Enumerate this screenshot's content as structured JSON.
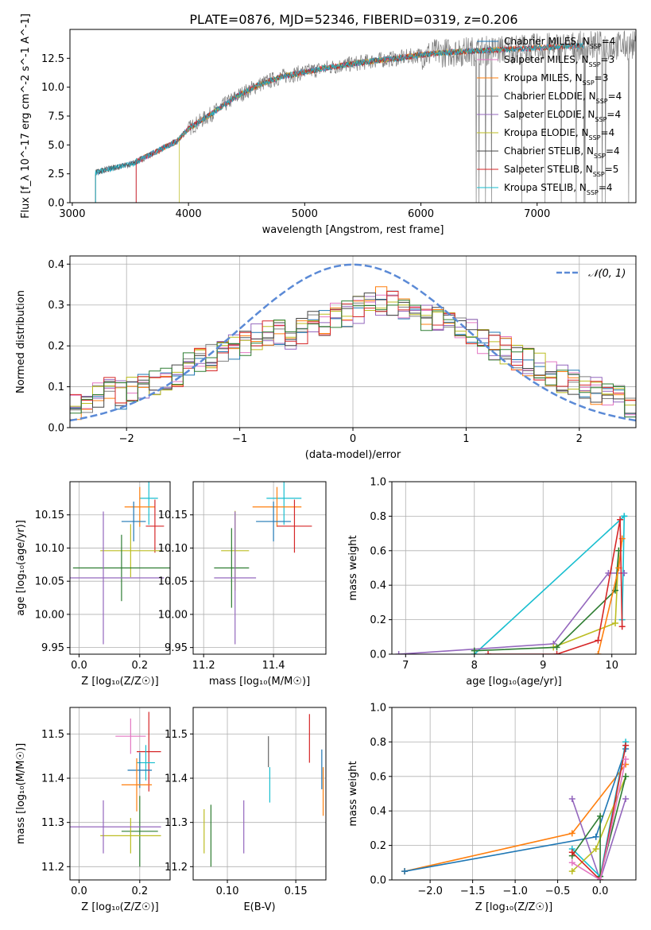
{
  "figure_title": "PLATE=0876, MJD=52346, FIBERID=0319, z=0.206",
  "colors": {
    "chabrier_miles": "#1f77b4",
    "salpeter_miles": "#e377c2",
    "kroupa_miles": "#ff7f0e",
    "chabrier_elodie": "#7f7f7f",
    "salpeter_elodie": "#9467bd",
    "kroupa_elodie": "#bcbd22",
    "chabrier_stelib": "#444444",
    "salpeter_stelib": "#d62728",
    "kroupa_stelib": "#17becf",
    "normal": "#5b8ad6"
  },
  "chart_data": [
    {
      "id": "spectrum",
      "type": "line",
      "title": "PLATE=0876, MJD=52346, FIBERID=0319, z=0.206",
      "xlabel": "wavelength [Angstrom, rest frame]",
      "ylabel": "Flux [f_λ 10^-17 erg cm^-2 s^-1 A^-1]",
      "xlim": [
        2980,
        7850
      ],
      "ylim": [
        0,
        15
      ],
      "xticks": [
        "3000",
        "4000",
        "5000",
        "6000",
        "7000"
      ],
      "yticks": [
        "0.0",
        "2.5",
        "5.0",
        "7.5",
        "10.0",
        "12.5"
      ],
      "grid": false,
      "legend_position": "top-right",
      "legend": [
        {
          "label": "Chabrier MILES, N",
          "sub": "SSP",
          "tail": "=4"
        },
        {
          "label": "Salpeter MILES, N",
          "sub": "SSP",
          "tail": "=3"
        },
        {
          "label": "Kroupa MILES, N",
          "sub": "SSP",
          "tail": "=3"
        },
        {
          "label": "Chabrier ELODIE, N",
          "sub": "SSP",
          "tail": "=4"
        },
        {
          "label": "Salpeter ELODIE, N",
          "sub": "SSP",
          "tail": "=4"
        },
        {
          "label": "Kroupa ELODIE, N",
          "sub": "SSP",
          "tail": "=4"
        },
        {
          "label": "Chabrier STELIB, N",
          "sub": "SSP",
          "tail": "=4"
        },
        {
          "label": "Salpeter STELIB, N",
          "sub": "SSP",
          "tail": "=5"
        },
        {
          "label": "Kroupa STELIB, N",
          "sub": "SSP",
          "tail": "=4"
        }
      ],
      "observed_continuum": {
        "x": [
          3200,
          3300,
          3500,
          3700,
          3900,
          4000,
          4200,
          4400,
          4600,
          4800,
          5000,
          5200,
          5400,
          5600,
          5800,
          6000,
          6200,
          6400,
          6600,
          6800,
          7000,
          7200,
          7400
        ],
        "y": [
          2.6,
          2.9,
          3.3,
          4.3,
          5.3,
          6.4,
          7.7,
          9.1,
          10.2,
          10.9,
          11.3,
          11.7,
          12.0,
          12.3,
          12.5,
          12.8,
          13.0,
          13.1,
          13.2,
          13.3,
          13.4,
          13.5,
          13.6
        ]
      },
      "model_start_wavelengths": [
        3200,
        3550,
        3550,
        3200,
        3550,
        3920,
        3200,
        3550,
        3200
      ]
    },
    {
      "id": "residual_hist",
      "type": "line",
      "xlabel": "(data-model)/error",
      "ylabel": "Normed distribution",
      "xlim": [
        -2.5,
        2.5
      ],
      "ylim": [
        0,
        0.42
      ],
      "xticks": [
        "−2",
        "−1",
        "0",
        "1",
        "2"
      ],
      "yticks": [
        "0.0",
        "0.1",
        "0.2",
        "0.3",
        "0.4"
      ],
      "grid": true,
      "legend_position": "top-right",
      "legend_label": "𝒩(0, 1)",
      "bin_edges_start": -2.5,
      "bin_width": 0.1,
      "baseline": [
        0.05,
        0.06,
        0.08,
        0.09,
        0.08,
        0.09,
        0.1,
        0.11,
        0.12,
        0.13,
        0.15,
        0.16,
        0.17,
        0.19,
        0.2,
        0.21,
        0.22,
        0.23,
        0.23,
        0.22,
        0.24,
        0.25,
        0.26,
        0.27,
        0.28,
        0.29,
        0.3,
        0.31,
        0.3,
        0.29,
        0.28,
        0.27,
        0.26,
        0.25,
        0.24,
        0.23,
        0.21,
        0.2,
        0.19,
        0.17,
        0.16,
        0.15,
        0.13,
        0.12,
        0.11,
        0.1,
        0.09,
        0.08,
        0.07,
        0.06
      ],
      "normal_curve": {
        "mean": 0,
        "sigma": 1
      }
    },
    {
      "id": "age_vs_Z",
      "type": "scatter",
      "xlabel": "Z [log₁₀(Z/Z☉)]",
      "ylabel": "age  [log₁₀(age/yr)]",
      "xlim": [
        -0.03,
        0.3
      ],
      "ylim": [
        9.94,
        10.2
      ],
      "xticks": [
        "0.0",
        "0.2"
      ],
      "yticks": [
        "9.95",
        "10.00",
        "10.05",
        "10.10",
        "10.15"
      ],
      "grid": true,
      "points": [
        {
          "x": 0.23,
          "y": 10.175,
          "xerr": 0.03,
          "yerr": 0.04,
          "c": "#17becf"
        },
        {
          "x": 0.2,
          "y": 10.162,
          "xerr": 0.05,
          "yerr": 0.03,
          "c": "#ff7f0e"
        },
        {
          "x": 0.18,
          "y": 10.14,
          "xerr": 0.04,
          "yerr": 0.03,
          "c": "#1f77b4"
        },
        {
          "x": 0.25,
          "y": 10.133,
          "xerr": 0.03,
          "yerr": 0.04,
          "c": "#d62728"
        },
        {
          "x": 0.17,
          "y": 10.096,
          "xerr": 0.1,
          "yerr": 0.04,
          "c": "#bcbd22"
        },
        {
          "x": 0.14,
          "y": 10.07,
          "xerr": 0.16,
          "yerr": 0.05,
          "c": "#2e7d32"
        },
        {
          "x": 0.08,
          "y": 10.055,
          "xerr": 0.2,
          "yerr": 0.1,
          "c": "#9467bd"
        }
      ]
    },
    {
      "id": "age_vs_mass",
      "type": "scatter",
      "xlabel": "mass [log₁₀(M/M☉)]",
      "ylabel": "",
      "xlim": [
        11.17,
        11.55
      ],
      "ylim": [
        9.94,
        10.2
      ],
      "xticks": [
        "11.2",
        "11.4"
      ],
      "yticks": [
        "9.95",
        "10.00",
        "10.05",
        "10.10",
        "10.15"
      ],
      "grid": true,
      "points": [
        {
          "x": 11.43,
          "y": 10.175,
          "xerr": 0.05,
          "yerr": 0.04,
          "c": "#17becf"
        },
        {
          "x": 11.41,
          "y": 10.162,
          "xerr": 0.07,
          "yerr": 0.03,
          "c": "#ff7f0e"
        },
        {
          "x": 11.4,
          "y": 10.14,
          "xerr": 0.05,
          "yerr": 0.03,
          "c": "#1f77b4"
        },
        {
          "x": 11.46,
          "y": 10.133,
          "xerr": 0.05,
          "yerr": 0.04,
          "c": "#d62728"
        },
        {
          "x": 11.29,
          "y": 10.096,
          "xerr": 0.04,
          "yerr": 0.06,
          "c": "#bcbd22"
        },
        {
          "x": 11.28,
          "y": 10.07,
          "xerr": 0.05,
          "yerr": 0.06,
          "c": "#2e7d32"
        },
        {
          "x": 11.29,
          "y": 10.055,
          "xerr": 0.06,
          "yerr": 0.1,
          "c": "#9467bd"
        }
      ]
    },
    {
      "id": "mass_weight_vs_age",
      "type": "line",
      "xlabel": "age  [log₁₀(age/yr)]",
      "ylabel": "mass weight",
      "xlim": [
        6.8,
        10.35
      ],
      "ylim": [
        0,
        1.0
      ],
      "xticks": [
        "7",
        "8",
        "9",
        "10"
      ],
      "yticks": [
        "0.0",
        "0.2",
        "0.4",
        "0.6",
        "0.8",
        "1.0"
      ],
      "grid": true,
      "series": [
        {
          "c": "#17becf",
          "x": [
            8.0,
            10.18
          ],
          "y": [
            0.0,
            0.8
          ]
        },
        {
          "c": "#17becf",
          "x": [
            10.15,
            10.18
          ],
          "y": [
            0.2,
            0.8
          ]
        },
        {
          "c": "#9467bd",
          "x": [
            6.9,
            9.15,
            9.95,
            10.18
          ],
          "y": [
            0.0,
            0.06,
            0.47,
            0.47
          ]
        },
        {
          "c": "#bcbd22",
          "x": [
            9.15,
            10.05,
            10.1
          ],
          "y": [
            0.04,
            0.18,
            0.6
          ]
        },
        {
          "c": "#2e7d32",
          "x": [
            8.0,
            9.2,
            10.05,
            10.1
          ],
          "y": [
            0.02,
            0.04,
            0.37,
            0.6
          ]
        },
        {
          "c": "#ff7f0e",
          "x": [
            9.8,
            10.1,
            10.15
          ],
          "y": [
            0.0,
            0.5,
            0.67
          ]
        },
        {
          "c": "#d62728",
          "x": [
            8.2,
            9.2,
            9.8,
            10.12,
            10.15
          ],
          "y": [
            0.0,
            0.0,
            0.08,
            0.78,
            0.16
          ]
        }
      ]
    },
    {
      "id": "mass_vs_Z",
      "type": "scatter",
      "xlabel": "Z [log₁₀(Z/Z☉)]",
      "ylabel": "mass [log₁₀(M/M☉)]",
      "xlim": [
        -0.03,
        0.3
      ],
      "ylim": [
        11.17,
        11.56
      ],
      "xticks": [
        "0.0",
        "0.2"
      ],
      "yticks": [
        "11.2",
        "11.3",
        "11.4",
        "11.5"
      ],
      "grid": true,
      "points": [
        {
          "x": 0.23,
          "y": 11.46,
          "xerr": 0.04,
          "yerr": 0.09,
          "c": "#d62728"
        },
        {
          "x": 0.17,
          "y": 11.495,
          "xerr": 0.05,
          "yerr": 0.04,
          "c": "#e377c2"
        },
        {
          "x": 0.22,
          "y": 11.435,
          "xerr": 0.03,
          "yerr": 0.04,
          "c": "#17becf"
        },
        {
          "x": 0.2,
          "y": 11.418,
          "xerr": 0.04,
          "yerr": 0.04,
          "c": "#1f77b4"
        },
        {
          "x": 0.19,
          "y": 11.385,
          "xerr": 0.05,
          "yerr": 0.06,
          "c": "#ff7f0e"
        },
        {
          "x": 0.2,
          "y": 11.28,
          "xerr": 0.06,
          "yerr": 0.08,
          "c": "#2e7d32"
        },
        {
          "x": 0.17,
          "y": 11.27,
          "xerr": 0.1,
          "yerr": 0.04,
          "c": "#bcbd22"
        },
        {
          "x": 0.08,
          "y": 11.29,
          "xerr": 0.19,
          "yerr": 0.06,
          "c": "#9467bd"
        }
      ]
    },
    {
      "id": "mass_vs_ebv",
      "type": "scatter",
      "xlabel": "E(B-V)",
      "ylabel": "",
      "xlim": [
        0.075,
        0.172
      ],
      "ylim": [
        11.17,
        11.56
      ],
      "xticks": [
        "0.10",
        "0.15"
      ],
      "yticks": [
        "11.2",
        "11.3",
        "11.4",
        "11.5"
      ],
      "grid": true,
      "points": [
        {
          "x": 0.16,
          "y": 11.49,
          "yerr": 0.055,
          "c": "#d62728"
        },
        {
          "x": 0.169,
          "y": 11.42,
          "yerr": 0.045,
          "c": "#1f77b4"
        },
        {
          "x": 0.17,
          "y": 11.37,
          "yerr": 0.055,
          "c": "#ff7f0e"
        },
        {
          "x": 0.13,
          "y": 11.46,
          "yerr": 0.035,
          "c": "#666666"
        },
        {
          "x": 0.131,
          "y": 11.385,
          "yerr": 0.04,
          "c": "#17becf"
        },
        {
          "x": 0.112,
          "y": 11.29,
          "yerr": 0.06,
          "c": "#9467bd"
        },
        {
          "x": 0.088,
          "y": 11.27,
          "yerr": 0.07,
          "c": "#2e7d32"
        },
        {
          "x": 0.083,
          "y": 11.28,
          "yerr": 0.05,
          "c": "#bcbd22"
        }
      ]
    },
    {
      "id": "mass_weight_vs_Z",
      "type": "line",
      "xlabel": "Z [log₁₀(Z/Z☉)]",
      "ylabel": "mass weight",
      "xlim": [
        -2.45,
        0.42
      ],
      "ylim": [
        0,
        1.0
      ],
      "xticks": [
        "−2.0",
        "−1.5",
        "−1.0",
        "−0.5",
        "0.0"
      ],
      "yticks": [
        "0.0",
        "0.2",
        "0.4",
        "0.6",
        "0.8",
        "1.0"
      ],
      "grid": true,
      "series": [
        {
          "c": "#ff7f0e",
          "x": [
            -2.3,
            -0.33,
            0.3
          ],
          "y": [
            0.05,
            0.27,
            0.67
          ]
        },
        {
          "c": "#1f77b4",
          "x": [
            -2.3,
            -0.05,
            0.3
          ],
          "y": [
            0.05,
            0.25,
            0.76
          ]
        },
        {
          "c": "#9467bd",
          "x": [
            -0.33,
            0.0,
            0.3
          ],
          "y": [
            0.47,
            0.0,
            0.47
          ]
        },
        {
          "c": "#17becf",
          "x": [
            -0.33,
            0.0,
            0.3
          ],
          "y": [
            0.18,
            0.02,
            0.8
          ]
        },
        {
          "c": "#bcbd22",
          "x": [
            -0.33,
            -0.05,
            0.3
          ],
          "y": [
            0.05,
            0.18,
            0.6
          ]
        },
        {
          "c": "#2e7d32",
          "x": [
            -0.33,
            0.0,
            0.0,
            0.3
          ],
          "y": [
            0.14,
            0.37,
            0.02,
            0.6
          ]
        },
        {
          "c": "#d62728",
          "x": [
            -0.33,
            0.0,
            0.3
          ],
          "y": [
            0.16,
            0.0,
            0.78
          ]
        },
        {
          "c": "#e377c2",
          "x": [
            -0.33,
            0.0,
            0.3
          ],
          "y": [
            0.1,
            0.0,
            0.7
          ]
        }
      ]
    }
  ]
}
